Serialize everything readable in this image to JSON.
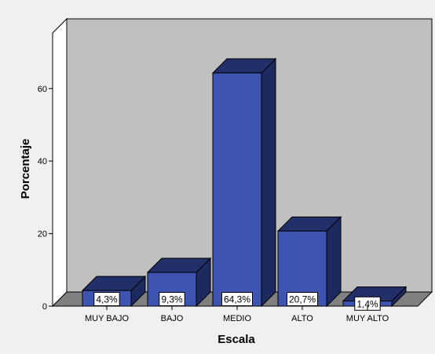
{
  "chart_data": {
    "type": "bar",
    "title": "",
    "xlabel": "Escala",
    "ylabel": "Porcentaje",
    "categories": [
      "MUY BAJO",
      "BAJO",
      "MEDIO",
      "ALTO",
      "MUY ALTO"
    ],
    "values": [
      4.3,
      9.3,
      64.3,
      20.7,
      1.4
    ],
    "data_labels": [
      "4,3%",
      "9,3%",
      "64,3%",
      "20,7%",
      "1,4%"
    ],
    "yticks": [
      "0",
      "20",
      "40",
      "60"
    ],
    "ytick_values": [
      0,
      20,
      40,
      60
    ],
    "ylim": [
      0,
      73
    ],
    "grid": false,
    "style": "3d",
    "colors": {
      "bar_front": "#3d55b0",
      "bar_top": "#22306a",
      "bar_side": "#1d2a60",
      "plot_back": "#c0c0c0",
      "floor": "#808080",
      "background": "#f0f0f0"
    }
  }
}
